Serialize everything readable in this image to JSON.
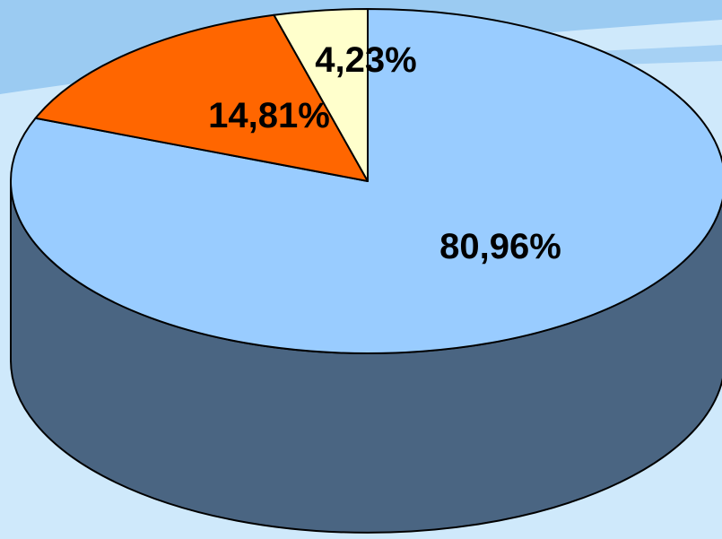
{
  "chart_data": {
    "type": "pie",
    "title": "",
    "start_angle_deg": 0,
    "direction": "clockwise",
    "slices": [
      {
        "value": 80.96,
        "label": "80,96%",
        "color": "#99ccff"
      },
      {
        "value": 14.81,
        "label": "14,81%",
        "color": "#ff6600"
      },
      {
        "value": 4.23,
        "label": "4,23%",
        "color": "#ffffcc"
      }
    ],
    "side_color": "#4a6582",
    "edge_color": "#000000",
    "background": {
      "base": "#cfe9fb",
      "stripe": "#9bcbf2"
    }
  }
}
